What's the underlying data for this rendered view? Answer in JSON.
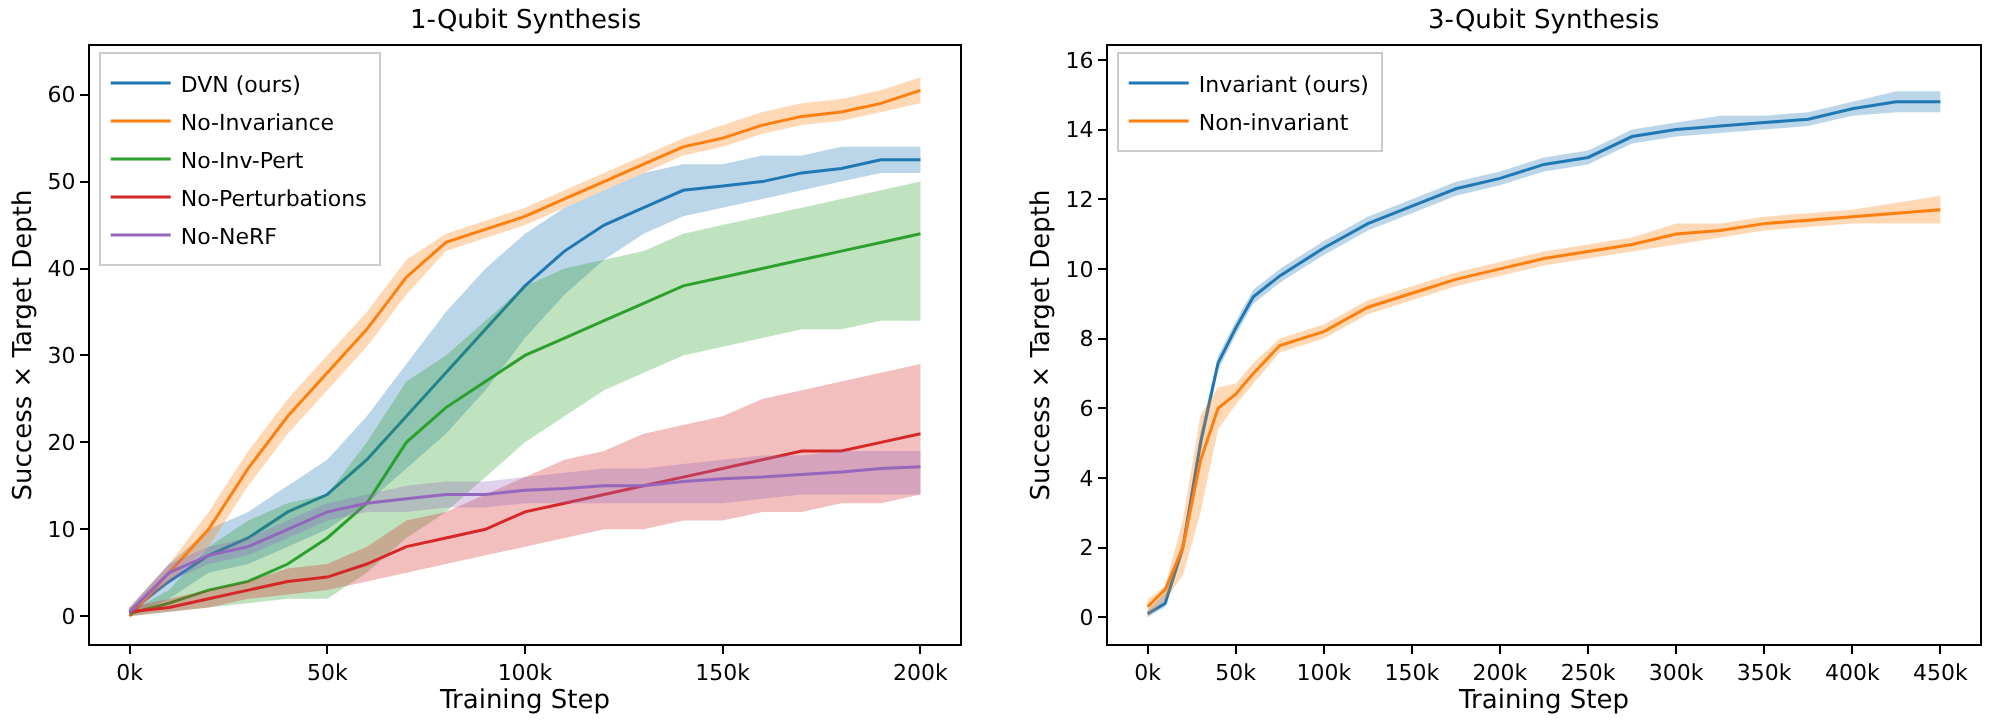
{
  "chart_data": [
    {
      "type": "line",
      "title": "1-Qubit Synthesis",
      "xlabel": "Training Step",
      "ylabel": "Success × Target Depth",
      "legend": "top left",
      "xlim": [
        -10000,
        210000
      ],
      "ylim": [
        -3.2,
        65.6
      ],
      "xticks": [
        {
          "value": 0,
          "label": "0k"
        },
        {
          "value": 50000,
          "label": "50k"
        },
        {
          "value": 100000,
          "label": "100k"
        },
        {
          "value": 150000,
          "label": "150k"
        },
        {
          "value": 200000,
          "label": "200k"
        }
      ],
      "yticks": [
        0,
        10,
        20,
        30,
        40,
        50,
        60
      ],
      "series": [
        {
          "name": "DVN (ours)",
          "color": "#1f77b4",
          "x": [
            0,
            10000,
            20000,
            30000,
            40000,
            50000,
            60000,
            70000,
            80000,
            90000,
            100000,
            110000,
            120000,
            130000,
            140000,
            150000,
            160000,
            170000,
            180000,
            190000,
            200000
          ],
          "values": [
            0.5,
            4,
            7,
            9,
            12,
            14,
            18,
            23,
            28,
            33,
            38,
            42,
            45,
            47,
            49,
            49.5,
            50,
            51,
            51.5,
            52.5,
            52.5
          ],
          "lower": [
            0,
            2,
            5,
            6,
            8,
            10,
            13,
            17,
            21,
            26,
            32,
            37,
            41,
            44,
            46,
            47,
            48,
            49,
            50,
            51,
            51
          ],
          "upper": [
            1,
            6,
            10,
            12,
            15,
            18,
            23,
            29,
            35,
            40,
            44,
            47,
            49,
            51,
            52,
            52,
            53,
            53,
            54,
            54,
            54
          ]
        },
        {
          "name": "No-Invariance",
          "color": "#ff7f0e",
          "x": [
            0,
            10000,
            20000,
            30000,
            40000,
            50000,
            60000,
            70000,
            80000,
            90000,
            100000,
            110000,
            120000,
            130000,
            140000,
            150000,
            160000,
            170000,
            180000,
            190000,
            200000
          ],
          "values": [
            0,
            5,
            10,
            17,
            23,
            28,
            33,
            39,
            43,
            44.5,
            46,
            48,
            50,
            52,
            54,
            55,
            56.5,
            57.5,
            58,
            59,
            60.5
          ],
          "lower": [
            0,
            4,
            8,
            15,
            21,
            26,
            31,
            37,
            42,
            43.5,
            45,
            47,
            49,
            51,
            53,
            54,
            55.5,
            56.5,
            57,
            58,
            59
          ],
          "upper": [
            1,
            6,
            12,
            19,
            25,
            30,
            35,
            41,
            44,
            45.5,
            47,
            49,
            51,
            53,
            55,
            56.5,
            58,
            59,
            59.5,
            60.5,
            62
          ]
        },
        {
          "name": "No-Inv-Pert",
          "color": "#2ca02c",
          "x": [
            0,
            10000,
            20000,
            30000,
            40000,
            50000,
            60000,
            70000,
            80000,
            90000,
            100000,
            110000,
            120000,
            130000,
            140000,
            150000,
            160000,
            170000,
            180000,
            190000,
            200000
          ],
          "values": [
            0.3,
            1.5,
            3,
            4,
            6,
            9,
            13,
            20,
            24,
            27,
            30,
            32,
            34,
            36,
            38,
            39,
            40,
            41,
            42,
            43,
            44
          ],
          "lower": [
            0,
            0.5,
            1,
            1.5,
            2,
            2,
            5,
            9,
            12,
            16,
            20,
            23,
            26,
            28,
            30,
            31,
            32,
            33,
            33,
            34,
            34
          ],
          "upper": [
            0.5,
            3,
            8,
            11,
            13,
            14,
            20,
            27,
            30,
            34,
            38,
            40,
            41,
            42,
            44,
            45,
            46,
            47,
            48,
            49,
            50
          ]
        },
        {
          "name": "No-Perturbations",
          "color": "#d62728",
          "x": [
            0,
            10000,
            20000,
            30000,
            40000,
            50000,
            60000,
            70000,
            80000,
            90000,
            100000,
            110000,
            120000,
            130000,
            140000,
            150000,
            160000,
            170000,
            180000,
            190000,
            200000
          ],
          "values": [
            0.5,
            1,
            2,
            3,
            4,
            4.5,
            6,
            8,
            9,
            10,
            12,
            13,
            14,
            15,
            16,
            17,
            18,
            19,
            19,
            20,
            21
          ],
          "lower": [
            0,
            0.5,
            1,
            2,
            2.5,
            3,
            4,
            5,
            6,
            7,
            8,
            9,
            10,
            10,
            11,
            11,
            12,
            12,
            13,
            13,
            14
          ],
          "upper": [
            1,
            2,
            3,
            4,
            5.5,
            6,
            8,
            11,
            12,
            14,
            16,
            18,
            19,
            21,
            22,
            23,
            25,
            26,
            27,
            28,
            29
          ]
        },
        {
          "name": "No-NeRF",
          "color": "#9467bd",
          "x": [
            0,
            10000,
            20000,
            30000,
            40000,
            50000,
            60000,
            70000,
            80000,
            90000,
            100000,
            110000,
            120000,
            130000,
            140000,
            150000,
            160000,
            170000,
            180000,
            190000,
            200000
          ],
          "values": [
            0.5,
            5,
            7,
            8,
            10,
            12,
            13,
            13.5,
            14,
            14,
            14.5,
            14.7,
            15,
            15,
            15.5,
            15.8,
            16,
            16.3,
            16.6,
            17,
            17.2
          ],
          "lower": [
            0,
            4,
            6,
            7,
            9,
            11,
            12,
            12,
            12.5,
            12.5,
            13,
            13,
            13,
            13,
            13,
            13,
            13.5,
            14,
            14,
            14,
            14
          ],
          "upper": [
            1,
            6,
            8,
            9,
            11,
            13,
            14,
            15,
            15.5,
            15.5,
            16,
            16.5,
            17,
            17,
            17.5,
            18,
            18.5,
            18.5,
            19,
            19,
            19
          ]
        }
      ]
    },
    {
      "type": "line",
      "title": "3-Qubit Synthesis",
      "xlabel": "Training Step",
      "ylabel": "Success × Target Depth",
      "legend": "top left",
      "xlim": [
        -22500,
        472500
      ],
      "ylim": [
        -0.77,
        16.4
      ],
      "xticks": [
        {
          "value": 0,
          "label": "0k"
        },
        {
          "value": 50000,
          "label": "50k"
        },
        {
          "value": 100000,
          "label": "100k"
        },
        {
          "value": 150000,
          "label": "150k"
        },
        {
          "value": 200000,
          "label": "200k"
        },
        {
          "value": 250000,
          "label": "250k"
        },
        {
          "value": 300000,
          "label": "300k"
        },
        {
          "value": 350000,
          "label": "350k"
        },
        {
          "value": 400000,
          "label": "400k"
        },
        {
          "value": 450000,
          "label": "450k"
        }
      ],
      "yticks": [
        0,
        2,
        4,
        6,
        8,
        10,
        12,
        14,
        16
      ],
      "series": [
        {
          "name": "Invariant (ours)",
          "color": "#1f77b4",
          "x": [
            0,
            10000,
            20000,
            30000,
            40000,
            50000,
            60000,
            75000,
            100000,
            125000,
            150000,
            175000,
            200000,
            225000,
            250000,
            275000,
            300000,
            325000,
            350000,
            375000,
            400000,
            425000,
            450000
          ],
          "values": [
            0.1,
            0.4,
            2,
            5,
            7.3,
            8.3,
            9.2,
            9.8,
            10.6,
            11.3,
            11.8,
            12.3,
            12.6,
            13,
            13.2,
            13.8,
            14,
            14.1,
            14.2,
            14.3,
            14.6,
            14.8,
            14.8
          ],
          "lower": [
            0,
            0.3,
            1.8,
            4.7,
            7.1,
            8.1,
            9,
            9.6,
            10.4,
            11.1,
            11.6,
            12.1,
            12.4,
            12.8,
            13,
            13.6,
            13.8,
            13.9,
            14,
            14.1,
            14.4,
            14.5,
            14.5
          ],
          "upper": [
            0.2,
            0.7,
            2.2,
            5.3,
            7.5,
            8.5,
            9.4,
            10,
            10.8,
            11.5,
            12,
            12.5,
            12.8,
            13.2,
            13.4,
            14,
            14.2,
            14.4,
            14.4,
            14.5,
            14.8,
            15.1,
            15.1
          ]
        },
        {
          "name": "Non-invariant",
          "color": "#ff7f0e",
          "x": [
            0,
            10000,
            20000,
            30000,
            40000,
            50000,
            60000,
            75000,
            100000,
            125000,
            150000,
            175000,
            200000,
            225000,
            250000,
            275000,
            300000,
            325000,
            350000,
            375000,
            400000,
            425000,
            450000
          ],
          "values": [
            0.3,
            0.8,
            2,
            4.5,
            6,
            6.4,
            7,
            7.8,
            8.2,
            8.9,
            9.3,
            9.7,
            10,
            10.3,
            10.5,
            10.7,
            11,
            11.1,
            11.3,
            11.4,
            11.5,
            11.6,
            11.7
          ],
          "lower": [
            0,
            0.5,
            1.2,
            3,
            5.4,
            6.1,
            6.7,
            7.6,
            8,
            8.7,
            9.1,
            9.5,
            9.8,
            10.1,
            10.3,
            10.5,
            10.7,
            10.9,
            11.1,
            11.2,
            11.3,
            11.3,
            11.3
          ],
          "upper": [
            0.5,
            0.9,
            2.8,
            5.8,
            6.6,
            6.7,
            7.3,
            8,
            8.4,
            9.1,
            9.5,
            9.9,
            10.2,
            10.5,
            10.7,
            10.9,
            11.3,
            11.3,
            11.5,
            11.6,
            11.7,
            11.9,
            12.1
          ]
        }
      ]
    }
  ]
}
